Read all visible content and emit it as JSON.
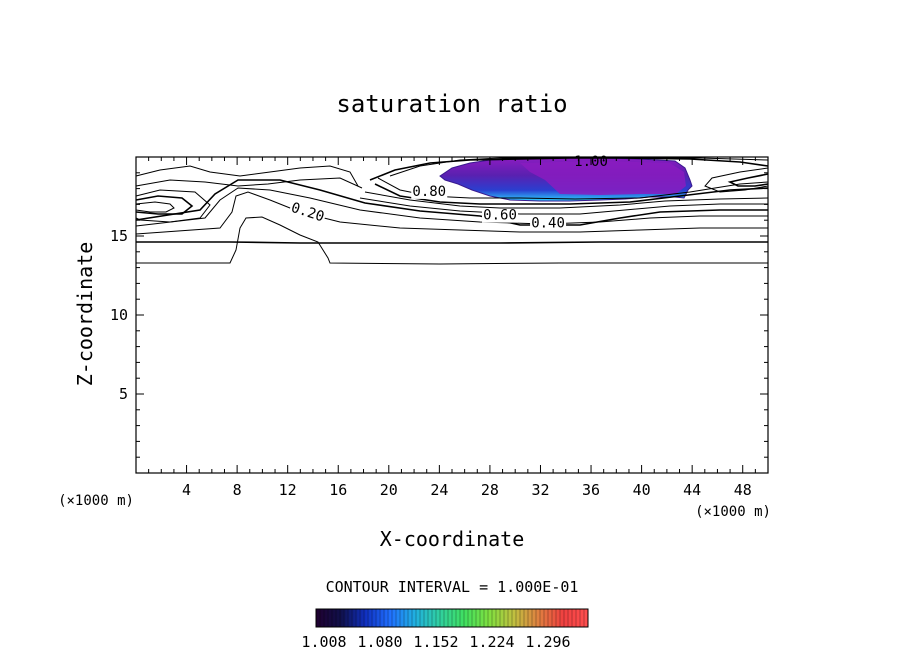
{
  "chart_data": {
    "type": "contour",
    "title": "saturation ratio",
    "xlabel": "X-coordinate",
    "ylabel": "Z-coordinate",
    "x_unit_label": "(×1000 m)",
    "x_unit_label_right": "(×1000 m)",
    "xlim": [
      0,
      50
    ],
    "ylim": [
      0,
      20
    ],
    "x_ticks": [
      4,
      8,
      12,
      16,
      20,
      24,
      28,
      32,
      36,
      40,
      44,
      48
    ],
    "y_ticks": [
      5,
      10,
      15
    ],
    "x_tick_labels": [
      "4",
      "8",
      "12",
      "16",
      "20",
      "24",
      "28",
      "32",
      "36",
      "40",
      "44",
      "48"
    ],
    "y_tick_labels": [
      "5",
      "10",
      "15"
    ],
    "contour_labels": [
      {
        "text": "0.20",
        "x": 13.5,
        "z": 16.3
      },
      {
        "text": "0.40",
        "x": 32.6,
        "z": 15.6
      },
      {
        "text": "0.60",
        "x": 28.8,
        "z": 16.1
      },
      {
        "text": "0.80",
        "x": 23.2,
        "z": 17.6
      },
      {
        "text": "1.00",
        "x": 36.0,
        "z": 19.5
      }
    ],
    "shaded_region": {
      "label": "saturation ratio > 1",
      "x_range": [
        24,
        44
      ],
      "z_range": [
        17.2,
        19.8
      ]
    },
    "contour_interval_text": "CONTOUR INTERVAL = 1.000E-01",
    "colorbar": {
      "ticks": [
        "1.008",
        "1.080",
        "1.152",
        "1.224",
        "1.296"
      ],
      "colors": [
        "#200030",
        "#10104a",
        "#1030c0",
        "#2070ff",
        "#20b0e0",
        "#30d0a0",
        "#40e060",
        "#80e040",
        "#c0c040",
        "#e08040",
        "#f04040",
        "#ff5050"
      ]
    },
    "grid": false
  }
}
